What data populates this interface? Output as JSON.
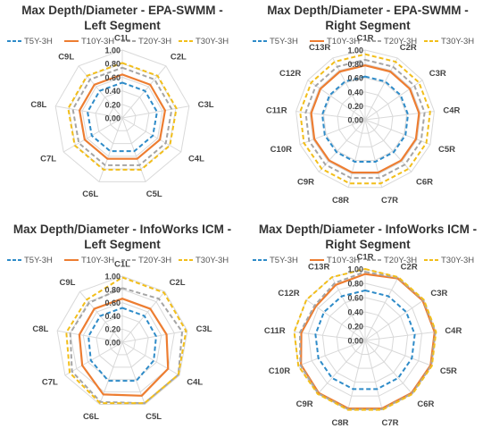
{
  "colors": {
    "T5Y-3H": "#2E8BC8",
    "T10Y-3H": "#ED7D31",
    "T20Y-3H": "#A5A5A5",
    "T30Y-3H": "#F2BE1A",
    "grid": "#D9D9D9"
  },
  "legend": [
    "T5Y-3H",
    "T10Y-3H",
    "T20Y-3H",
    "T30Y-3H"
  ],
  "chart_data": [
    {
      "type": "radar",
      "title": [
        "Max Depth/Diameter - EPA-SWMM -",
        "Left Segment"
      ],
      "categories": [
        "C1L",
        "C2L",
        "C3L",
        "C4L",
        "C5L",
        "C6L",
        "C7L",
        "C8L",
        "C9L"
      ],
      "ticks": [
        "0.00",
        "0.20",
        "0.40",
        "0.60",
        "0.80",
        "1.00"
      ],
      "rlim": [
        0,
        1
      ],
      "grid": true,
      "legend_position": "top",
      "series": [
        {
          "name": "T5Y-3H",
          "dash": "dashed",
          "values": [
            0.52,
            0.52,
            0.52,
            0.52,
            0.52,
            0.52,
            0.52,
            0.52,
            0.52
          ]
        },
        {
          "name": "T10Y-3H",
          "dash": "solid",
          "values": [
            0.64,
            0.64,
            0.64,
            0.64,
            0.64,
            0.64,
            0.64,
            0.64,
            0.64
          ]
        },
        {
          "name": "T20Y-3H",
          "dash": "dashed",
          "values": [
            0.74,
            0.74,
            0.74,
            0.74,
            0.74,
            0.74,
            0.74,
            0.74,
            0.74
          ]
        },
        {
          "name": "T30Y-3H",
          "dash": "dashed",
          "values": [
            0.81,
            0.81,
            0.81,
            0.81,
            0.81,
            0.81,
            0.81,
            0.81,
            0.81
          ]
        }
      ]
    },
    {
      "type": "radar",
      "title": [
        "Max Depth/Diameter - EPA-SWMM -",
        "Right Segment"
      ],
      "categories": [
        "C1R",
        "C2R",
        "C3R",
        "C4R",
        "C5R",
        "C6R",
        "C7R",
        "C8R",
        "C9R",
        "C10R",
        "C11R",
        "C12R",
        "C13R"
      ],
      "ticks": [
        "0.00",
        "0.20",
        "0.40",
        "0.60",
        "0.80",
        "1.00"
      ],
      "rlim": [
        0,
        1
      ],
      "grid": true,
      "legend_position": "top",
      "series": [
        {
          "name": "T5Y-3H",
          "dash": "dashed",
          "values": [
            0.62,
            0.62,
            0.62,
            0.62,
            0.62,
            0.62,
            0.62,
            0.62,
            0.62,
            0.62,
            0.62,
            0.62,
            0.62
          ]
        },
        {
          "name": "T10Y-3H",
          "dash": "solid",
          "values": [
            0.78,
            0.78,
            0.78,
            0.78,
            0.78,
            0.78,
            0.78,
            0.78,
            0.78,
            0.78,
            0.78,
            0.78,
            0.78
          ]
        },
        {
          "name": "T20Y-3H",
          "dash": "dashed",
          "values": [
            0.86,
            0.86,
            0.86,
            0.86,
            0.86,
            0.86,
            0.86,
            0.86,
            0.86,
            0.86,
            0.86,
            0.86,
            0.86
          ]
        },
        {
          "name": "T30Y-3H",
          "dash": "dashed",
          "values": [
            0.94,
            0.94,
            0.94,
            0.94,
            0.94,
            0.94,
            0.94,
            0.94,
            0.94,
            0.94,
            0.94,
            0.94,
            0.94
          ]
        }
      ]
    },
    {
      "type": "radar",
      "title": [
        "Max Depth/Diameter - InfoWorks ICM -",
        "Left Segment"
      ],
      "categories": [
        "C1L",
        "C2L",
        "C3L",
        "C4L",
        "C5L",
        "C6L",
        "C7L",
        "C8L",
        "C9L"
      ],
      "ticks": [
        "0.00",
        "0.20",
        "0.40",
        "0.60",
        "0.80",
        "1.00"
      ],
      "rlim": [
        0,
        1
      ],
      "grid": true,
      "legend_position": "top",
      "series": [
        {
          "name": "T5Y-3H",
          "dash": "dashed",
          "values": [
            0.52,
            0.52,
            0.52,
            0.55,
            0.62,
            0.62,
            0.55,
            0.52,
            0.52
          ]
        },
        {
          "name": "T10Y-3H",
          "dash": "solid",
          "values": [
            0.66,
            0.66,
            0.68,
            0.8,
            0.86,
            0.84,
            0.7,
            0.66,
            0.66
          ]
        },
        {
          "name": "T20Y-3H",
          "dash": "dashed",
          "values": [
            0.82,
            0.86,
            0.92,
            0.98,
            0.98,
            0.96,
            0.88,
            0.8,
            0.78
          ]
        },
        {
          "name": "T30Y-3H",
          "dash": "dashed",
          "values": [
            0.98,
            0.98,
            0.98,
            0.98,
            0.98,
            0.98,
            0.92,
            0.86,
            0.84
          ]
        }
      ]
    },
    {
      "type": "radar",
      "title": [
        "Max Depth/Diameter - InfoWorks ICM -",
        "Right Segment"
      ],
      "categories": [
        "C1R",
        "C2R",
        "C3R",
        "C4R",
        "C5R",
        "C6R",
        "C7R",
        "C8R",
        "C9R",
        "C10R",
        "C11R",
        "C12R",
        "C13R"
      ],
      "ticks": [
        "0.00",
        "0.20",
        "0.40",
        "0.60",
        "0.80",
        "1.00"
      ],
      "rlim": [
        0,
        1
      ],
      "grid": true,
      "legend_position": "top",
      "series": [
        {
          "name": "T5Y-3H",
          "dash": "dashed",
          "values": [
            0.7,
            0.7,
            0.7,
            0.7,
            0.7,
            0.7,
            0.7,
            0.7,
            0.7,
            0.7,
            0.7,
            0.7,
            0.7
          ]
        },
        {
          "name": "T10Y-3H",
          "dash": "solid",
          "values": [
            0.93,
            0.98,
            0.98,
            0.98,
            0.98,
            0.98,
            0.98,
            0.98,
            0.98,
            0.96,
            0.9,
            0.84,
            0.88
          ]
        },
        {
          "name": "T20Y-3H",
          "dash": "dashed",
          "values": [
            0.96,
            0.99,
            0.99,
            0.99,
            0.99,
            0.99,
            0.99,
            0.99,
            0.99,
            0.97,
            0.92,
            0.86,
            0.91
          ]
        },
        {
          "name": "T30Y-3H",
          "dash": "dashed",
          "values": [
            1.0,
            1.0,
            1.0,
            1.0,
            1.0,
            1.0,
            1.0,
            1.0,
            1.0,
            1.0,
            1.0,
            1.0,
            1.0
          ]
        }
      ]
    }
  ]
}
